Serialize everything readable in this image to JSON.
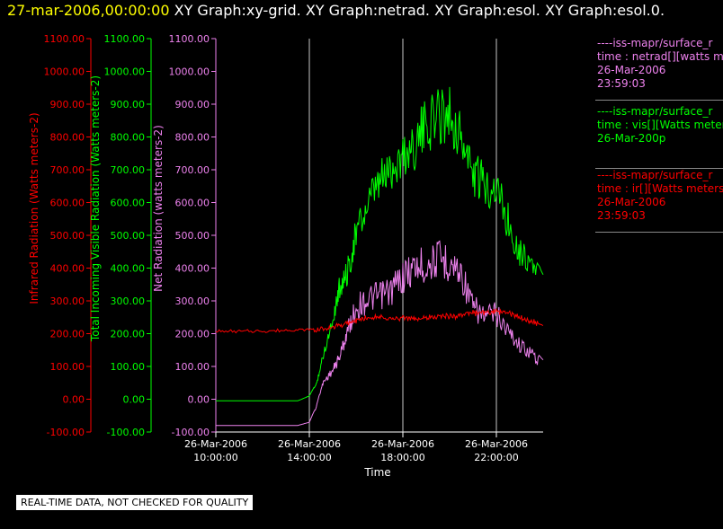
{
  "header": {
    "date": "27-mar-2006,00:00:00",
    "graphs": "XY Graph:xy-grid.  XY Graph:netrad.  XY Graph:esol.  XY Graph:esol.0."
  },
  "legend": [
    {
      "line1": "----iss-mapr/surface_r",
      "line2": "time : netrad[][watts m",
      "line3": "26-Mar-2006",
      "line4": "23:59:03",
      "color": "#ee82ee"
    },
    {
      "line1": "----iss-mapr/surface_r",
      "line2": "time : vis[][Watts meter",
      "line3": "26-Mar-200p",
      "line4": "",
      "color": "#00ff00"
    },
    {
      "line1": "----iss-mapr/surface_r",
      "line2": "time : ir[][Watts meters",
      "line3": "26-Mar-2006",
      "line4": "23:59:03",
      "color": "#ff0000"
    }
  ],
  "note": "REAL-TIME DATA, NOT CHECKED FOR QUALITY",
  "chart_data": {
    "type": "line",
    "xlabel": "Time",
    "x_ticks": [
      {
        "date": "26-Mar-2006",
        "time": "10:00:00",
        "hour": 10
      },
      {
        "date": "26-Mar-2006",
        "time": "14:00:00",
        "hour": 14
      },
      {
        "date": "26-Mar-2006",
        "time": "18:00:00",
        "hour": 18
      },
      {
        "date": "26-Mar-2006",
        "time": "22:00:00",
        "hour": 22
      }
    ],
    "xlim_hours": [
      10,
      24
    ],
    "grid_vertical_hours": [
      14,
      18,
      22
    ],
    "y_ticks": [
      "1100.00",
      "1000.00",
      "900.00",
      "800.00",
      "700.00",
      "600.00",
      "500.00",
      "400.00",
      "300.00",
      "200.00",
      "100.00",
      "0.00",
      "-100.00"
    ],
    "axes": [
      {
        "label": "Infrared Radiation (Watts meters-2)",
        "color": "#ff0000",
        "ylim": [
          -100,
          1100
        ]
      },
      {
        "label": "Total Incoming Visible Radiation (Watts meters-2)",
        "color": "#00ff00",
        "ylim": [
          -100,
          1100
        ]
      },
      {
        "label": "Net Radiation (watts meters-2)",
        "color": "#ee82ee",
        "ylim": [
          -100,
          1100
        ]
      }
    ],
    "series": [
      {
        "name": "netrad",
        "color": "#ee82ee",
        "x": [
          10,
          13.5,
          14.0,
          14.3,
          14.6,
          15.0,
          15.3,
          15.6,
          16.0,
          16.5,
          17.0,
          17.5,
          18.0,
          18.5,
          19.0,
          19.5,
          20.0,
          20.5,
          21.0,
          21.5,
          22.0,
          22.5,
          23.0,
          23.5,
          24.0
        ],
        "y": [
          -80,
          -80,
          -70,
          -20,
          60,
          100,
          150,
          230,
          320,
          350,
          360,
          380,
          430,
          460,
          470,
          490,
          480,
          440,
          320,
          290,
          300,
          240,
          190,
          160,
          120
        ]
      },
      {
        "name": "vis",
        "color": "#00ff00",
        "x": [
          10,
          13.5,
          14.0,
          14.3,
          14.6,
          15.0,
          15.3,
          15.6,
          16.0,
          16.5,
          17.0,
          17.5,
          18.0,
          18.5,
          19.0,
          19.5,
          20.0,
          20.5,
          21.0,
          21.5,
          22.0,
          22.5,
          23.0,
          23.5,
          24.0
        ],
        "y": [
          -5,
          -5,
          10,
          50,
          150,
          270,
          380,
          420,
          560,
          650,
          730,
          780,
          820,
          860,
          920,
          960,
          970,
          880,
          760,
          720,
          720,
          600,
          500,
          460,
          380
        ]
      },
      {
        "name": "ir",
        "color": "#ff0000",
        "x": [
          10,
          11,
          12,
          13,
          14,
          14.5,
          15,
          15.5,
          16,
          16.5,
          17,
          17.5,
          18,
          18.5,
          19,
          19.5,
          20,
          20.5,
          21,
          21.5,
          22,
          22.5,
          23,
          23.5,
          24
        ],
        "y": [
          210,
          208,
          210,
          212,
          215,
          220,
          225,
          235,
          245,
          255,
          260,
          250,
          255,
          250,
          255,
          258,
          260,
          262,
          270,
          268,
          275,
          270,
          255,
          245,
          225
        ]
      }
    ]
  }
}
